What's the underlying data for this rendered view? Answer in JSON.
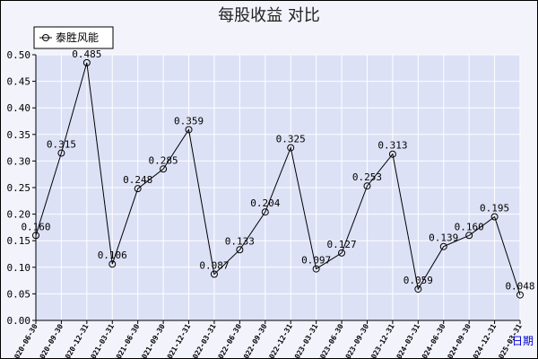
{
  "chart_data": {
    "type": "line",
    "title": "每股收益  对比",
    "xlabel": "",
    "ylabel": "",
    "x_unit_label": "日期",
    "ylim": [
      0,
      0.5
    ],
    "y_ticks": [
      "0.00",
      "0.05",
      "0.10",
      "0.15",
      "0.20",
      "0.25",
      "0.30",
      "0.35",
      "0.40",
      "0.45",
      "0.50"
    ],
    "grid": true,
    "legend_position": "top-left",
    "categories": [
      "2020-06-30",
      "2020-09-30",
      "2020-12-31",
      "2021-03-31",
      "2021-06-30",
      "2021-09-30",
      "2021-12-31",
      "2022-03-31",
      "2022-06-30",
      "2022-09-30",
      "2022-12-31",
      "2023-03-31",
      "2023-06-30",
      "2023-09-30",
      "2023-12-31",
      "2024-03-31",
      "2024-06-30",
      "2024-09-30",
      "2024-12-31",
      "2025-03-31"
    ],
    "series": [
      {
        "name": "泰胜风能",
        "values": [
          0.16,
          0.315,
          0.485,
          0.106,
          0.248,
          0.285,
          0.359,
          0.087,
          0.133,
          0.204,
          0.325,
          0.097,
          0.127,
          0.253,
          0.313,
          0.059,
          0.139,
          0.16,
          0.195,
          0.048
        ],
        "labels": [
          "0.160",
          "0.315",
          "0.485",
          "0.106",
          "0.248",
          "0.285",
          "0.359",
          "0.087",
          "0.133",
          "0.204",
          "0.325",
          "0.097",
          "0.127",
          "0.253",
          "0.313",
          "0.059",
          "0.139",
          "0.160",
          "0.195",
          "0.048"
        ]
      }
    ],
    "colors": {
      "plot_bg": "#dde1f6",
      "grid": "#ffffff",
      "line": "#000000"
    }
  }
}
